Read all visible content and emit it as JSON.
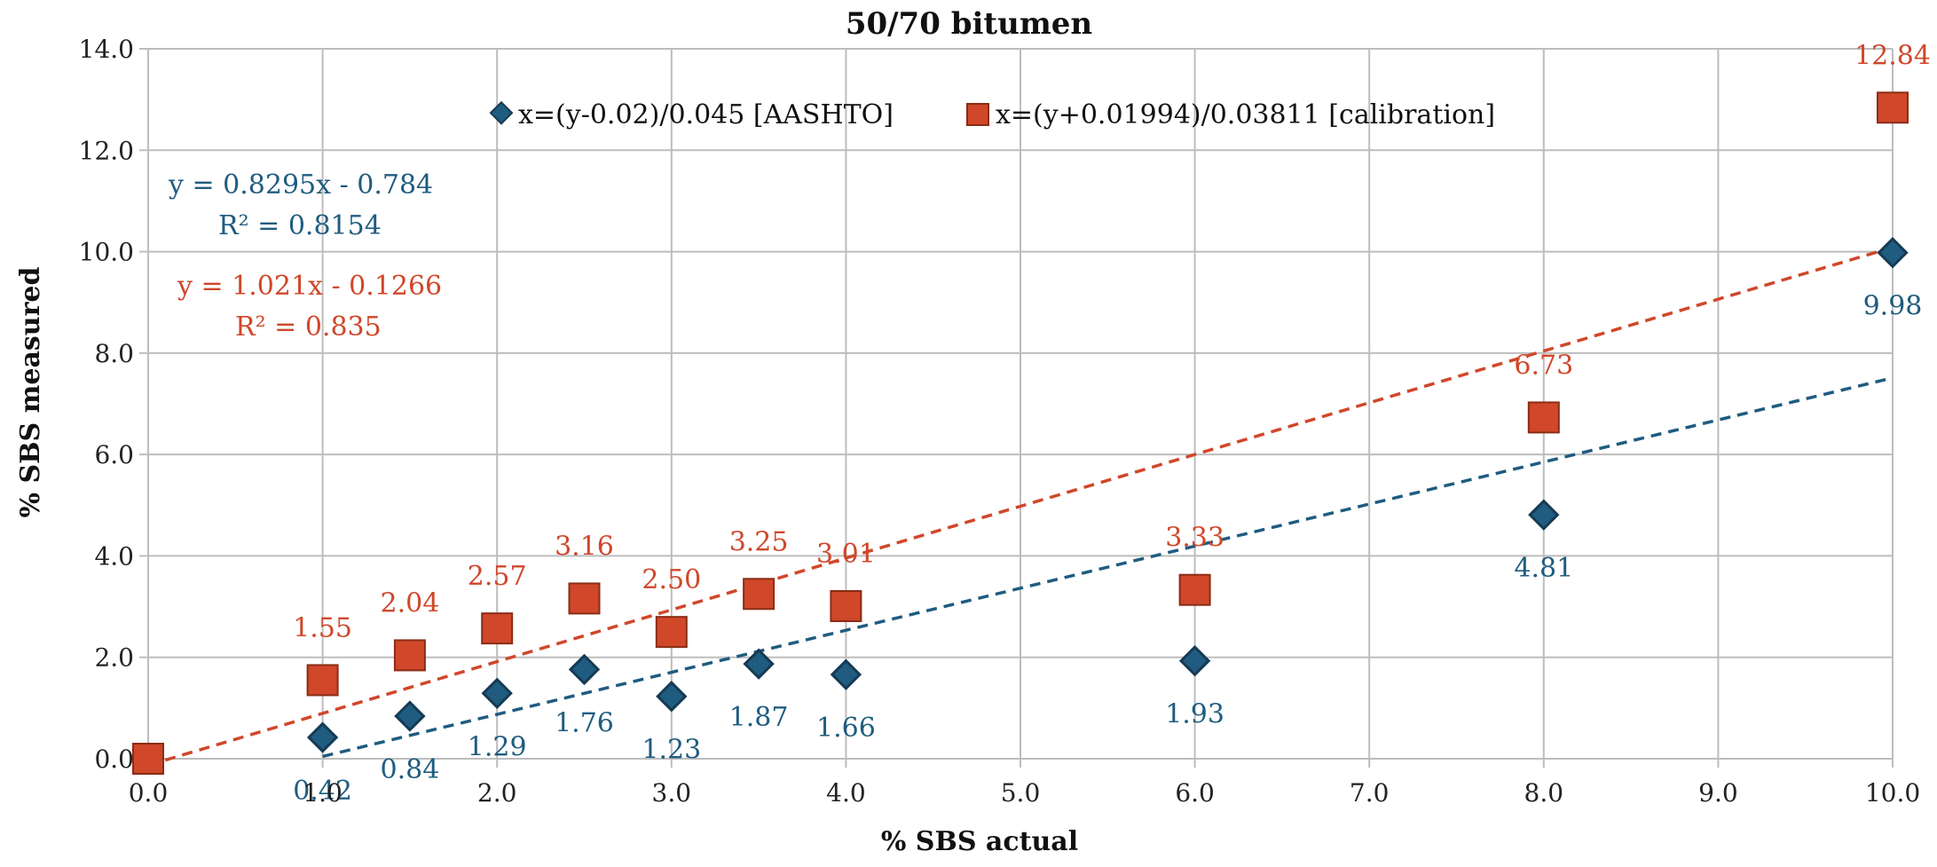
{
  "chart_data": {
    "type": "scatter",
    "title": "50/70 bitumen",
    "xlabel": "% SBS actual",
    "ylabel": "% SBS measured",
    "xlim": [
      0,
      10
    ],
    "ylim": [
      0,
      14
    ],
    "xticks": [
      0,
      1,
      2,
      3,
      4,
      5,
      6,
      7,
      8,
      9,
      10
    ],
    "yticks": [
      0,
      2,
      4,
      6,
      8,
      10,
      12,
      14
    ],
    "xtick_labels": [
      "0.0",
      "1.0",
      "2.0",
      "3.0",
      "4.0",
      "5.0",
      "6.0",
      "7.0",
      "8.0",
      "9.0",
      "10.0"
    ],
    "ytick_labels": [
      "0.0",
      "2.0",
      "4.0",
      "6.0",
      "8.0",
      "10.0",
      "12.0",
      "14.0"
    ],
    "grid": true,
    "legend_position": "top",
    "series": [
      {
        "name": "x=(y-0.02)/0.045 [AASHTO]",
        "marker": "diamond",
        "color": "#1f5c80",
        "x": [
          0,
          1.0,
          1.5,
          2.0,
          2.5,
          3.0,
          3.5,
          4.0,
          6.0,
          8.0,
          10.0
        ],
        "y": [
          0,
          0.42,
          0.84,
          1.29,
          1.76,
          1.23,
          1.87,
          1.66,
          1.93,
          4.81,
          9.98
        ],
        "labels": [
          "",
          "0.42",
          "0.84",
          "1.29",
          "1.76",
          "1.23",
          "1.87",
          "1.66",
          "1.93",
          "4.81",
          "9.98"
        ],
        "trendline": {
          "slope": 0.8295,
          "intercept": -0.784,
          "x_from": 1.0,
          "x_to": 10.0,
          "equation": "y = 0.8295x - 0.784",
          "r2": "R² = 0.8154"
        }
      },
      {
        "name": "x=(y+0.01994)/0.03811 [calibration]",
        "marker": "square",
        "color": "#d0472a",
        "x": [
          0,
          1.0,
          1.5,
          2.0,
          2.5,
          3.0,
          3.5,
          4.0,
          6.0,
          8.0,
          10.0
        ],
        "y": [
          0,
          1.55,
          2.04,
          2.57,
          3.16,
          2.5,
          3.25,
          3.01,
          3.33,
          6.73,
          12.84
        ],
        "labels": [
          "",
          "1.55",
          "2.04",
          "2.57",
          "3.16",
          "2.50",
          "3.25",
          "3.01",
          "3.33",
          "6.73",
          "12.84"
        ],
        "trendline": {
          "slope": 1.021,
          "intercept": -0.1266,
          "x_from": 0,
          "x_to": 10.0,
          "equation": "y = 1.021x - 0.1266",
          "r2": "R² = 0.835"
        }
      }
    ]
  },
  "colors": {
    "series1": "#1f5c80",
    "series1_dark": "#163a54",
    "series2": "#d0472a",
    "series2_dark": "#8a2d16",
    "grid": "#bdbdbd",
    "text": "#222222"
  }
}
